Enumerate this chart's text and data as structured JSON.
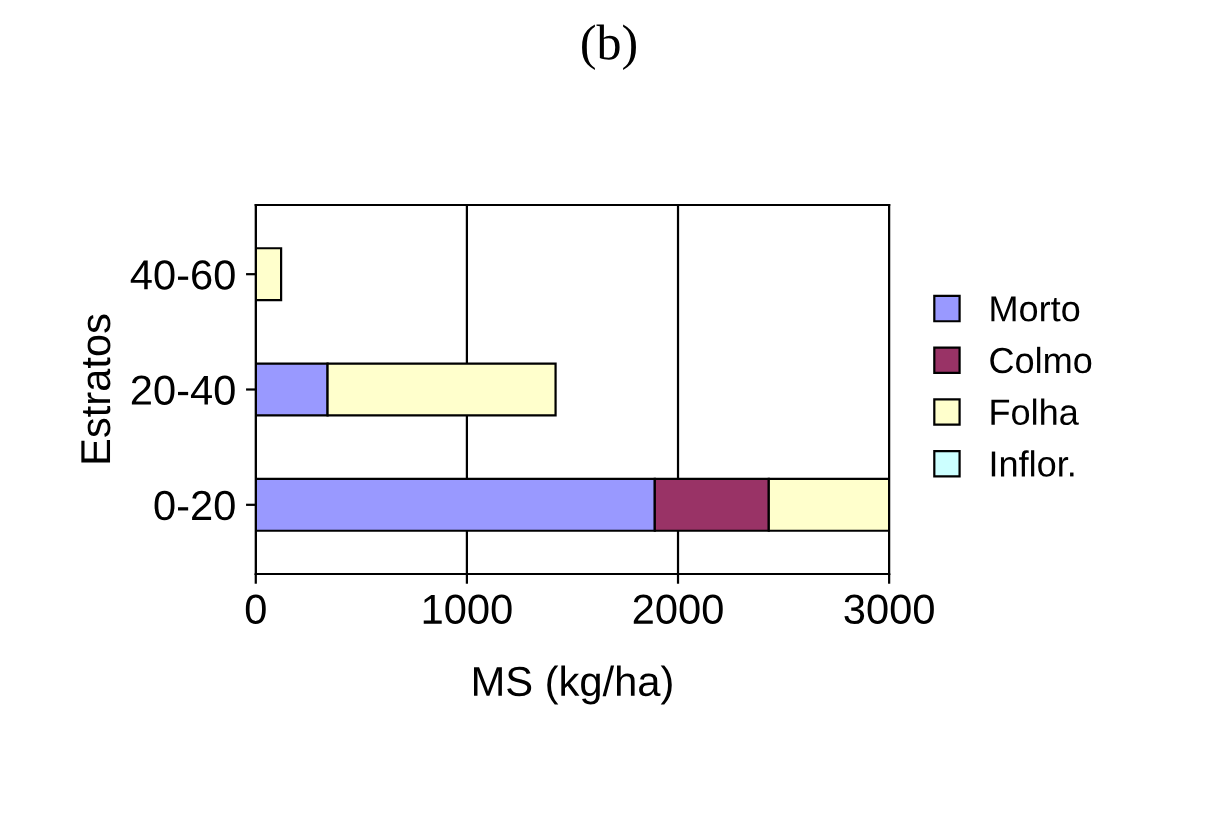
{
  "chart_data": {
    "type": "bar",
    "orientation": "horizontal",
    "stacked": true,
    "title": "(b)",
    "xlabel": "MS (kg/ha)",
    "ylabel": "Estratos",
    "categories": [
      "40-60",
      "20-40",
      "0-20"
    ],
    "series": [
      {
        "name": "Morto",
        "color": "#9999ff",
        "values": [
          null,
          340,
          1890
        ]
      },
      {
        "name": "Colmo",
        "color": "#993366",
        "values": [
          null,
          null,
          540
        ]
      },
      {
        "name": "Folha",
        "color": "#ffffcc",
        "values": [
          120,
          1080,
          570
        ]
      },
      {
        "name": "Inflor.",
        "color": "#ccffff",
        "values": [
          null,
          null,
          null
        ]
      }
    ],
    "xlim": [
      0,
      3000
    ],
    "xticks": [
      0,
      1000,
      2000,
      3000
    ],
    "grid": "x",
    "legend": "right"
  }
}
